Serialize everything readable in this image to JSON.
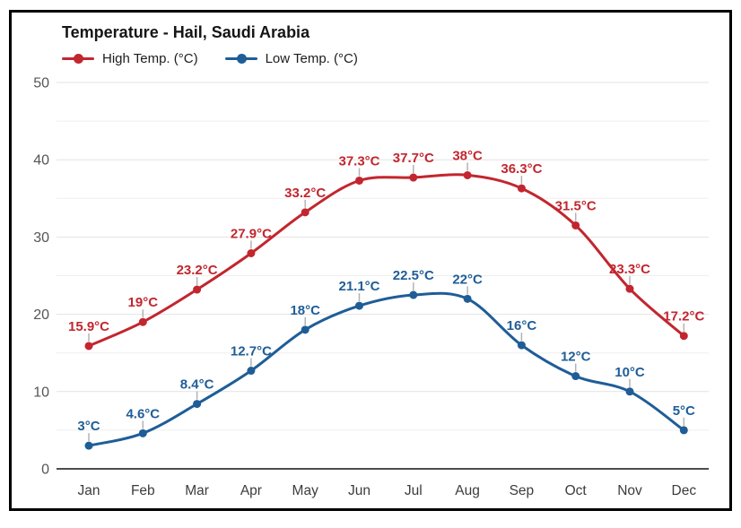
{
  "title": "Temperature - Hail, Saudi Arabia",
  "chart_data": {
    "type": "line",
    "title": "Temperature - Hail, Saudi Arabia",
    "categories": [
      "Jan",
      "Feb",
      "Mar",
      "Apr",
      "May",
      "Jun",
      "Jul",
      "Aug",
      "Sep",
      "Oct",
      "Nov",
      "Dec"
    ],
    "series": [
      {
        "name": "High Temp. (°C)",
        "color": "#c2262e",
        "values": [
          15.9,
          19,
          23.2,
          27.9,
          33.2,
          37.3,
          37.7,
          38,
          36.3,
          31.5,
          23.3,
          17.2
        ],
        "labels": [
          "15.9°C",
          "19°C",
          "23.2°C",
          "27.9°C",
          "33.2°C",
          "37.3°C",
          "37.7°C",
          "38°C",
          "36.3°C",
          "31.5°C",
          "23.3°C",
          "17.2°C"
        ]
      },
      {
        "name": "Low Temp. (°C)",
        "color": "#1f5d97",
        "values": [
          3,
          4.6,
          8.4,
          12.7,
          18,
          21.1,
          22.5,
          22,
          16,
          12,
          10,
          5
        ],
        "labels": [
          "3°C",
          "4.6°C",
          "8.4°C",
          "12.7°C",
          "18°C",
          "21.1°C",
          "22.5°C",
          "22°C",
          "16°C",
          "12°C",
          "10°C",
          "5°C"
        ]
      }
    ],
    "ylim": [
      0,
      50
    ],
    "yticks": [
      0,
      10,
      20,
      30,
      40,
      50
    ],
    "grid": "horizontal gridlines every 5, labels every 10, no vertical grid",
    "legend_position": "top-left",
    "marker": "filled circle",
    "point_label_tick_color": "#b3b3b3",
    "axis_line_color": "#4d4d4d"
  }
}
